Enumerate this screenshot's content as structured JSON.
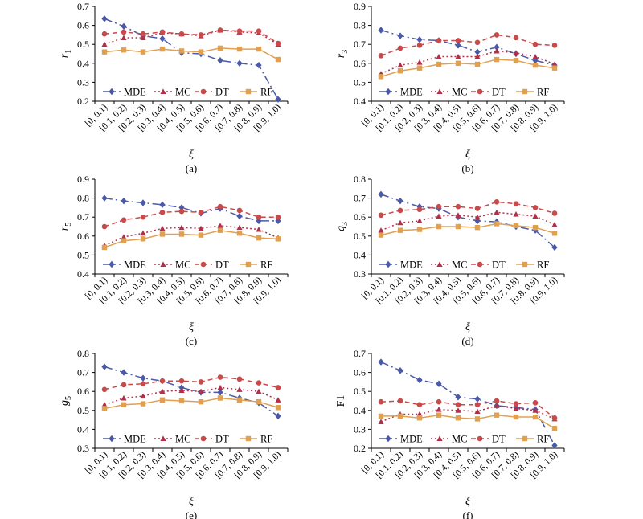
{
  "colors": {
    "MDE": "#4a5aa8",
    "MC": "#b0304a",
    "DT": "#c84a4a",
    "RF": "#e0a050"
  },
  "chart_data": [
    {
      "type": "line",
      "subtitle": "(a)",
      "ylabel": "r",
      "ylabel_sub": "1",
      "xlabel": "ξ",
      "ylim": [
        0.2,
        0.7
      ],
      "yticks": [
        "0.2",
        "0.3",
        "0.4",
        "0.5",
        "0.6",
        "0.7"
      ],
      "categories": [
        "[0, 0.1)",
        "[0.1, 0.2)",
        "[0.2, 0.3)",
        "[0.3, 0.4)",
        "[0.4, 0.5)",
        "[0.5, 0.6)",
        "[0.6, 0.7)",
        "[0.7, 0.8)",
        "[0.8, 0.9)",
        "[0.9, 1.0)"
      ],
      "series": [
        {
          "name": "MDE",
          "values": [
            0.635,
            0.595,
            0.545,
            0.53,
            0.455,
            0.45,
            0.415,
            0.4,
            0.39,
            0.21
          ]
        },
        {
          "name": "MC",
          "values": [
            0.5,
            0.535,
            0.535,
            0.56,
            0.555,
            0.545,
            0.575,
            0.565,
            0.56,
            0.5
          ]
        },
        {
          "name": "DT",
          "values": [
            0.555,
            0.565,
            0.555,
            0.565,
            0.555,
            0.55,
            0.575,
            0.57,
            0.57,
            0.505
          ]
        },
        {
          "name": "RF",
          "values": [
            0.46,
            0.47,
            0.46,
            0.475,
            0.465,
            0.46,
            0.48,
            0.475,
            0.475,
            0.42
          ]
        }
      ],
      "legend": "bottom"
    },
    {
      "type": "line",
      "subtitle": "(b)",
      "ylabel": "r",
      "ylabel_sub": "3",
      "xlabel": "ξ",
      "ylim": [
        0.4,
        0.9
      ],
      "yticks": [
        "0.4",
        "0.5",
        "0.6",
        "0.7",
        "0.8",
        "0.9"
      ],
      "categories": [
        "[0, 0.1)",
        "[0.1, 0.2)",
        "[0.2, 0.3)",
        "[0.3, 0.4)",
        "[0.4, 0.5)",
        "[0.5, 0.6)",
        "[0.6, 0.7)",
        "[0.7, 0.8)",
        "[0.8, 0.9)",
        "[0.9, 1.0)"
      ],
      "series": [
        {
          "name": "MDE",
          "values": [
            0.775,
            0.745,
            0.725,
            0.72,
            0.695,
            0.66,
            0.685,
            0.65,
            0.615,
            0.59
          ]
        },
        {
          "name": "MC",
          "values": [
            0.545,
            0.59,
            0.605,
            0.635,
            0.635,
            0.635,
            0.665,
            0.655,
            0.635,
            0.595
          ]
        },
        {
          "name": "DT",
          "values": [
            0.64,
            0.68,
            0.695,
            0.72,
            0.72,
            0.71,
            0.75,
            0.735,
            0.7,
            0.695
          ]
        },
        {
          "name": "RF",
          "values": [
            0.53,
            0.56,
            0.575,
            0.595,
            0.6,
            0.595,
            0.62,
            0.615,
            0.59,
            0.575
          ]
        }
      ],
      "legend": "bottom"
    },
    {
      "type": "line",
      "subtitle": "(c)",
      "ylabel": "r",
      "ylabel_sub": "5",
      "xlabel": "ξ",
      "ylim": [
        0.4,
        0.9
      ],
      "yticks": [
        "0.4",
        "0.5",
        "0.6",
        "0.7",
        "0.8",
        "0.9"
      ],
      "categories": [
        "[0, 0.1)",
        "[0.1, 0.2)",
        "[0.2, 0.3)",
        "[0.3, 0.4)",
        "[0.4, 0.5)",
        "[0.5, 0.6)",
        "[0.6, 0.7)",
        "[0.7, 0.8)",
        "[0.8, 0.9)",
        "[0.9, 1.0)"
      ],
      "series": [
        {
          "name": "MDE",
          "values": [
            0.8,
            0.785,
            0.775,
            0.765,
            0.75,
            0.72,
            0.745,
            0.705,
            0.68,
            0.68
          ]
        },
        {
          "name": "MC",
          "values": [
            0.55,
            0.595,
            0.615,
            0.64,
            0.645,
            0.64,
            0.655,
            0.645,
            0.635,
            0.59
          ]
        },
        {
          "name": "DT",
          "values": [
            0.65,
            0.685,
            0.7,
            0.725,
            0.73,
            0.725,
            0.755,
            0.735,
            0.7,
            0.7
          ]
        },
        {
          "name": "RF",
          "values": [
            0.54,
            0.575,
            0.585,
            0.61,
            0.61,
            0.605,
            0.63,
            0.615,
            0.59,
            0.585
          ]
        }
      ],
      "legend": "bottom"
    },
    {
      "type": "line",
      "subtitle": "(d)",
      "ylabel": "g",
      "ylabel_sub": "3",
      "xlabel": "ξ",
      "ylim": [
        0.3,
        0.8
      ],
      "yticks": [
        "0.3",
        "0.4",
        "0.5",
        "0.6",
        "0.7",
        "0.8"
      ],
      "categories": [
        "[0, 0.1)",
        "[0.1, 0.2)",
        "[0.2, 0.3)",
        "[0.3, 0.4)",
        "[0.4, 0.5)",
        "[0.5, 0.6)",
        "[0.6, 0.7)",
        "[0.7, 0.8)",
        "[0.8, 0.9)",
        "[0.9, 1.0)"
      ],
      "series": [
        {
          "name": "MDE",
          "values": [
            0.72,
            0.685,
            0.655,
            0.645,
            0.6,
            0.58,
            0.575,
            0.55,
            0.53,
            0.44
          ]
        },
        {
          "name": "MC",
          "values": [
            0.53,
            0.57,
            0.58,
            0.605,
            0.61,
            0.6,
            0.625,
            0.615,
            0.605,
            0.56
          ]
        },
        {
          "name": "DT",
          "values": [
            0.61,
            0.635,
            0.64,
            0.655,
            0.655,
            0.645,
            0.68,
            0.67,
            0.65,
            0.62
          ]
        },
        {
          "name": "RF",
          "values": [
            0.505,
            0.53,
            0.535,
            0.55,
            0.55,
            0.545,
            0.565,
            0.555,
            0.545,
            0.515
          ]
        }
      ],
      "legend": "bottom"
    },
    {
      "type": "line",
      "subtitle": "(e)",
      "ylabel": "g",
      "ylabel_sub": "5",
      "xlabel": "ξ",
      "ylim": [
        0.3,
        0.8
      ],
      "yticks": [
        "0.3",
        "0.4",
        "0.5",
        "0.6",
        "0.7",
        "0.8"
      ],
      "categories": [
        "[0, 0.1)",
        "[0.1, 0.2)",
        "[0.2, 0.3)",
        "[0.3, 0.4)",
        "[0.4, 0.5)",
        "[0.5, 0.6)",
        "[0.6, 0.7)",
        "[0.7, 0.8)",
        "[0.8, 0.9)",
        "[0.9, 1.0)"
      ],
      "series": [
        {
          "name": "MDE",
          "values": [
            0.73,
            0.7,
            0.67,
            0.655,
            0.62,
            0.595,
            0.595,
            0.565,
            0.54,
            0.47
          ]
        },
        {
          "name": "MC",
          "values": [
            0.53,
            0.565,
            0.575,
            0.6,
            0.605,
            0.6,
            0.62,
            0.61,
            0.6,
            0.555
          ]
        },
        {
          "name": "DT",
          "values": [
            0.61,
            0.635,
            0.64,
            0.655,
            0.655,
            0.65,
            0.675,
            0.665,
            0.645,
            0.62
          ]
        },
        {
          "name": "RF",
          "values": [
            0.51,
            0.53,
            0.535,
            0.555,
            0.55,
            0.545,
            0.565,
            0.555,
            0.545,
            0.515
          ]
        }
      ],
      "legend": "bottom"
    },
    {
      "type": "line",
      "subtitle": "(f)",
      "ylabel": "F1",
      "ylabel_sub": "",
      "xlabel": "ξ",
      "ylim": [
        0.2,
        0.7
      ],
      "yticks": [
        "0.2",
        "0.3",
        "0.4",
        "0.5",
        "0.6",
        "0.7"
      ],
      "categories": [
        "[0, 0.1)",
        "[0.1, 0.2)",
        "[0.2, 0.3)",
        "[0.3, 0.4)",
        "[0.4, 0.5)",
        "[0.5, 0.6)",
        "[0.6, 0.7)",
        "[0.7, 0.8)",
        "[0.8, 0.9)",
        "[0.9, 1.0)"
      ],
      "series": [
        {
          "name": "MDE",
          "values": [
            0.655,
            0.61,
            0.56,
            0.54,
            0.47,
            0.46,
            0.425,
            0.415,
            0.405,
            0.215
          ]
        },
        {
          "name": "MC",
          "values": [
            0.34,
            0.38,
            0.38,
            0.405,
            0.4,
            0.395,
            0.425,
            0.41,
            0.4,
            0.355
          ]
        },
        {
          "name": "DT",
          "values": [
            0.445,
            0.45,
            0.43,
            0.445,
            0.43,
            0.43,
            0.45,
            0.435,
            0.44,
            0.36
          ]
        },
        {
          "name": "RF",
          "values": [
            0.37,
            0.37,
            0.36,
            0.375,
            0.36,
            0.355,
            0.375,
            0.365,
            0.365,
            0.305
          ]
        }
      ],
      "legend": "bottom"
    }
  ]
}
